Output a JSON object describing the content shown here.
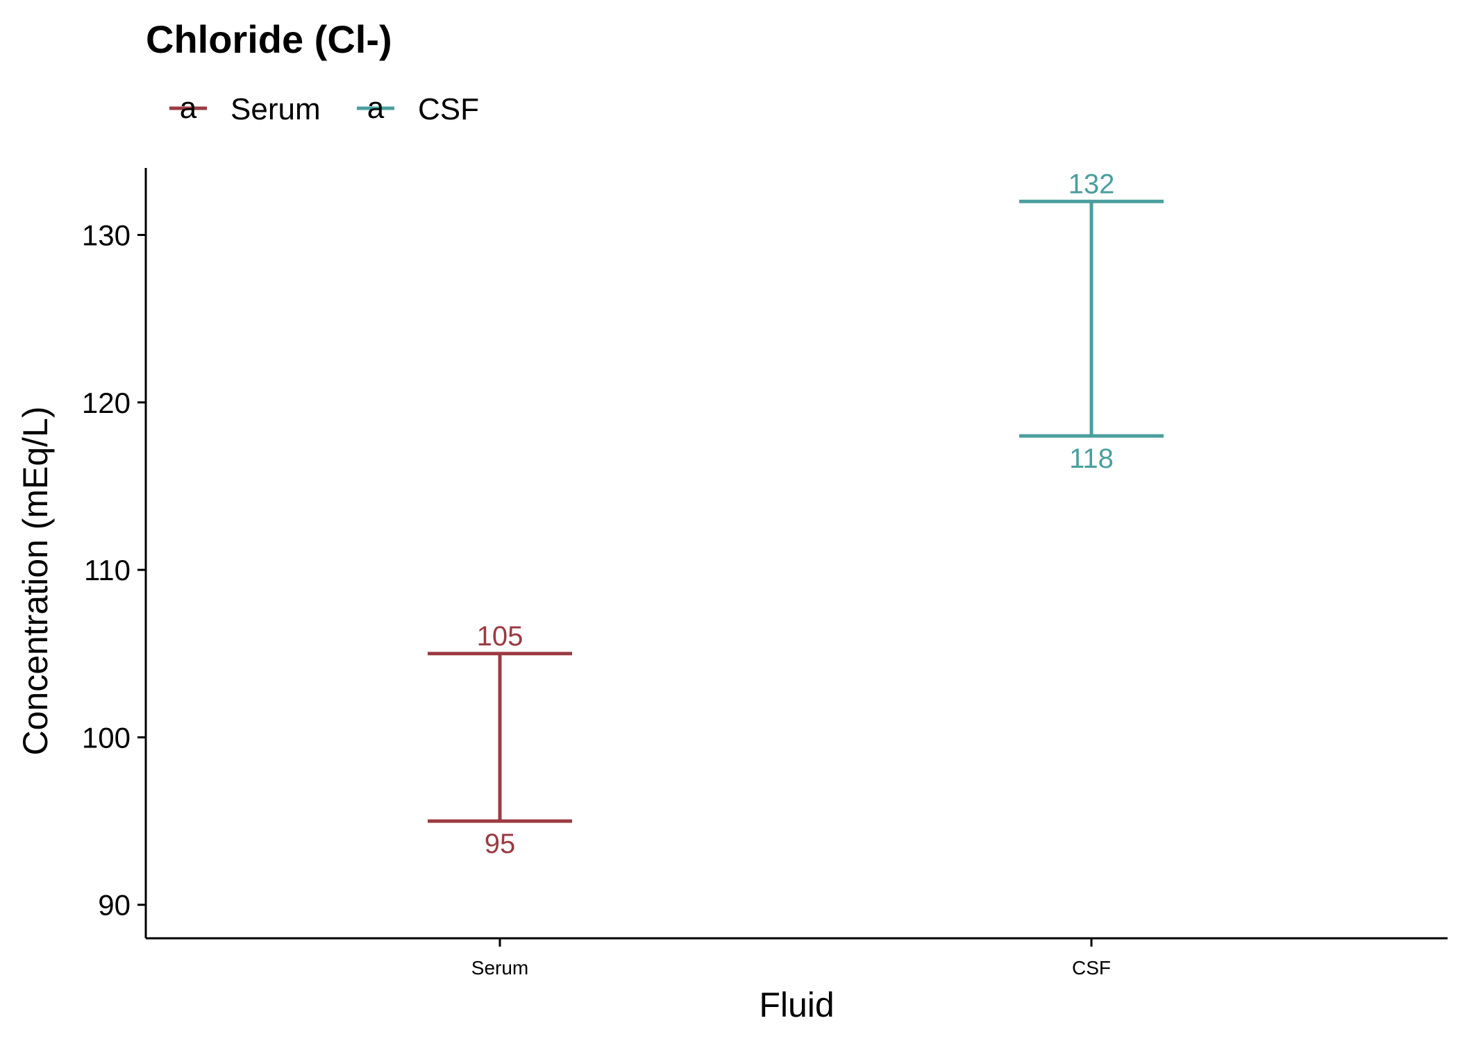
{
  "chart_data": {
    "type": "errorbar",
    "title": "Chloride (Cl-)",
    "xlabel": "Fluid",
    "ylabel": "Concentration (mEq/L)",
    "categories": [
      "Serum",
      "CSF"
    ],
    "series": [
      {
        "name": "Serum",
        "category": "Serum",
        "low": 95,
        "high": 105,
        "color": "#9b3a42"
      },
      {
        "name": "CSF",
        "category": "CSF",
        "low": 118,
        "high": 132,
        "color": "#4a9e9e"
      }
    ],
    "ylim": [
      88,
      134
    ],
    "yticks": [
      90,
      100,
      110,
      120,
      130
    ],
    "legend": {
      "position": "top-left",
      "key_glyph": "a"
    },
    "grid": false
  }
}
